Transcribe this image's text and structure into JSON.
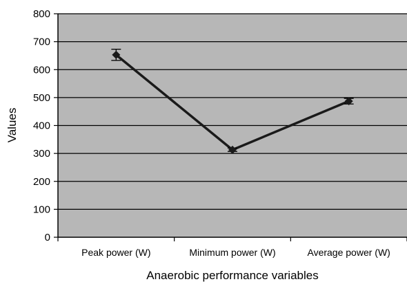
{
  "chart_data": {
    "type": "line",
    "categories": [
      "Peak power (W)",
      "Minimum power (W)",
      "Average power (W)"
    ],
    "series": [
      {
        "values": [
          653,
          313,
          487
        ],
        "error": [
          20,
          6,
          10
        ]
      }
    ],
    "xlabel": "Anaerobic performance variables",
    "ylabel": "Values",
    "ylim": [
      0,
      800
    ],
    "yticks": [
      0,
      100,
      200,
      300,
      400,
      500,
      600,
      700,
      800
    ],
    "grid": true,
    "legend": "none",
    "colors": {
      "plot_background": "#b7b7b7",
      "line": "#1a1a1a",
      "grid": "#000000"
    }
  }
}
